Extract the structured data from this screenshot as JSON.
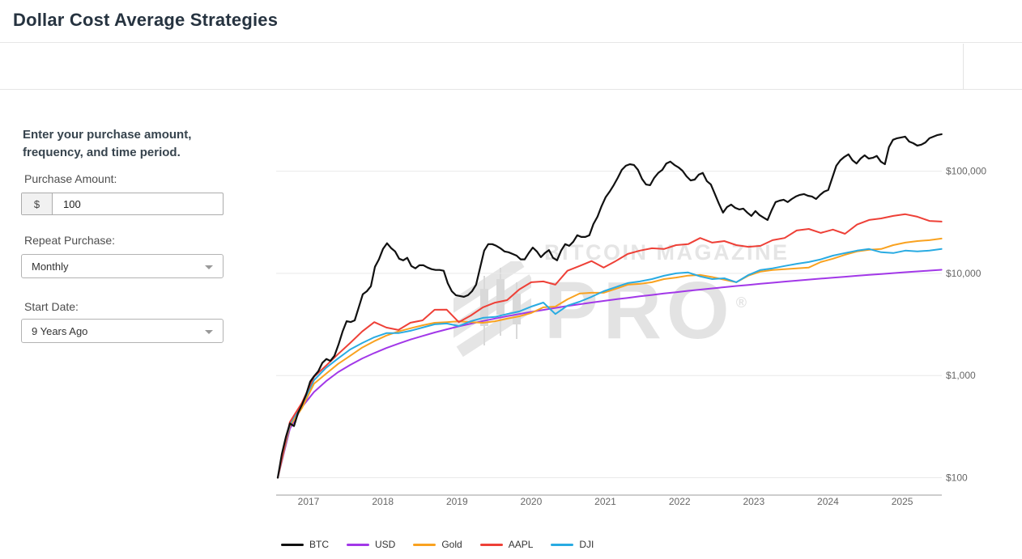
{
  "header": {
    "title": "Dollar Cost Average Strategies"
  },
  "sidebar": {
    "intro": "Enter your purchase amount, frequency, and time period.",
    "purchase_amount": {
      "label": "Purchase Amount:",
      "prefix": "$",
      "value": "100"
    },
    "repeat_purchase": {
      "label": "Repeat Purchase:",
      "value": "Monthly"
    },
    "start_date": {
      "label": "Start Date:",
      "value": "9 Years Ago"
    }
  },
  "watermark": {
    "line1": "BITCOIN MAGAZINE",
    "line2": "PRO",
    "reg": "®"
  },
  "chart_data": {
    "type": "line",
    "title": "",
    "xlabel": "",
    "ylabel": "",
    "x_axis": {
      "range": [
        2016.585,
        2025.53
      ],
      "ticks": [
        2017,
        2018,
        2019,
        2020,
        2021,
        2022,
        2023,
        2024,
        2025
      ]
    },
    "y_axis": {
      "scale": "log",
      "range": [
        67,
        310000
      ],
      "ticks": [
        {
          "value": 100,
          "label": "$100"
        },
        {
          "value": 1000,
          "label": "$1,000"
        },
        {
          "value": 10000,
          "label": "$10,000"
        },
        {
          "value": 100000,
          "label": "$100,000"
        }
      ]
    },
    "legend_position": "bottom-left",
    "grid": true,
    "series": [
      {
        "name": "BTC",
        "color": "#111111",
        "t0": 2016.585,
        "dt": 0.054545,
        "values": [
          100,
          170,
          250,
          340,
          320,
          430,
          520,
          650,
          870,
          990,
          1100,
          1330,
          1450,
          1390,
          1560,
          2010,
          2690,
          3400,
          3340,
          3470,
          4650,
          6250,
          6680,
          7480,
          11600,
          13700,
          17300,
          19700,
          17700,
          16400,
          13900,
          13400,
          14200,
          11800,
          11200,
          12000,
          12000,
          11400,
          11000,
          10800,
          10800,
          10600,
          8000,
          6680,
          6110,
          6000,
          5890,
          6110,
          6680,
          7750,
          11400,
          16700,
          19300,
          19300,
          18600,
          17600,
          16400,
          16100,
          15500,
          14900,
          13700,
          13700,
          15800,
          17900,
          16400,
          14400,
          15800,
          16900,
          14200,
          13400,
          16700,
          19300,
          18600,
          20400,
          23600,
          22700,
          22700,
          23600,
          30400,
          35800,
          45400,
          55500,
          63100,
          72900,
          85900,
          103000,
          113000,
          117000,
          115000,
          103000,
          84000,
          74000,
          73000,
          86000,
          96000,
          103000,
          119000,
          124000,
          115000,
          109000,
          101000,
          89000,
          81300,
          82800,
          92500,
          96000,
          80000,
          74000,
          59700,
          48000,
          39300,
          44600,
          47100,
          43800,
          42200,
          43000,
          39300,
          36500,
          40700,
          37200,
          35200,
          33300,
          41400,
          49800,
          51500,
          52500,
          49800,
          53400,
          56500,
          58600,
          59700,
          57500,
          56500,
          53400,
          58600,
          63100,
          65400,
          85900,
          113000,
          128000,
          138000,
          146000,
          128000,
          119000,
          133000,
          143000,
          133000,
          135000,
          141000,
          124000,
          117000,
          172000,
          203000,
          210000,
          214000,
          218000,
          195000,
          188000,
          178000,
          182000,
          191000,
          210000,
          218000,
          226000,
          230000
        ]
      },
      {
        "name": "USD",
        "color": "#a238e8",
        "t0": 2016.585,
        "dt": 0.16264,
        "values": [
          100,
          300,
          490,
          690,
          880,
          1080,
          1270,
          1470,
          1660,
          1860,
          2050,
          2250,
          2440,
          2640,
          2830,
          3030,
          3220,
          3420,
          3610,
          3810,
          4000,
          4200,
          4390,
          4590,
          4790,
          4980,
          5180,
          5370,
          5570,
          5760,
          5960,
          6150,
          6350,
          6540,
          6740,
          6930,
          7130,
          7320,
          7520,
          7710,
          7910,
          8100,
          8300,
          8490,
          8690,
          8880,
          9080,
          9270,
          9470,
          9670,
          9860,
          10060,
          10250,
          10450,
          10640,
          10840
        ]
      },
      {
        "name": "Gold",
        "color": "#f9a220",
        "t0": 2016.585,
        "dt": 0.16264,
        "values": [
          100,
          320,
          480,
          830,
          1040,
          1300,
          1560,
          1880,
          2170,
          2460,
          2700,
          2900,
          3100,
          3280,
          3330,
          3400,
          3330,
          3280,
          3400,
          3600,
          3800,
          4090,
          4650,
          4730,
          5570,
          6340,
          6460,
          6460,
          7060,
          7750,
          7890,
          8180,
          8790,
          9100,
          9500,
          9640,
          9200,
          8660,
          8180,
          9500,
          10400,
          10800,
          11000,
          11200,
          11400,
          12900,
          13900,
          15200,
          16400,
          17000,
          17300,
          18900,
          20000,
          20700,
          21100,
          21900
        ]
      },
      {
        "name": "AAPL",
        "color": "#ee4037",
        "t0": 2016.585,
        "dt": 0.16264,
        "values": [
          100,
          350,
          540,
          970,
          1250,
          1620,
          2080,
          2700,
          3330,
          2950,
          2790,
          3290,
          3470,
          4400,
          4410,
          3330,
          3870,
          4650,
          5170,
          5470,
          6940,
          8180,
          8330,
          7750,
          10600,
          11800,
          13200,
          11400,
          13200,
          15500,
          16700,
          17600,
          17300,
          18900,
          19300,
          22200,
          20000,
          20700,
          18900,
          18200,
          18600,
          21100,
          22200,
          26300,
          27200,
          24900,
          26800,
          24400,
          30000,
          33300,
          34500,
          36500,
          37900,
          35800,
          32600,
          32100
        ]
      },
      {
        "name": "DJI",
        "color": "#29abe2",
        "t0": 2016.585,
        "dt": 0.16264,
        "values": [
          100,
          335,
          520,
          900,
          1190,
          1470,
          1800,
          2080,
          2370,
          2600,
          2600,
          2740,
          2950,
          3170,
          3230,
          3050,
          3400,
          3670,
          3740,
          4000,
          4240,
          4730,
          5180,
          4000,
          4830,
          5270,
          5890,
          6680,
          7330,
          8040,
          8330,
          8790,
          9460,
          10000,
          10200,
          9330,
          8790,
          8950,
          8180,
          9640,
          10800,
          11200,
          11800,
          12400,
          12900,
          13700,
          14900,
          15800,
          16700,
          17300,
          16100,
          15800,
          16700,
          16400,
          16700,
          17300
        ]
      }
    ]
  }
}
